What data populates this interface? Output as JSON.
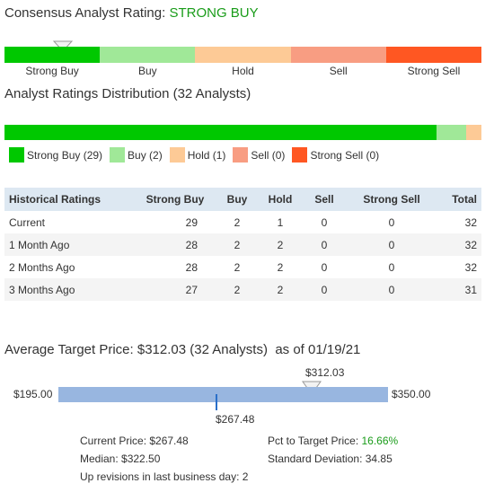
{
  "consensus": {
    "title_prefix": "Consensus Analyst Rating:",
    "rating": "STRONG BUY",
    "labels": [
      "Strong Buy",
      "Buy",
      "Hold",
      "Sell",
      "Strong Sell"
    ],
    "colors": [
      "#00c800",
      "#a0e898",
      "#fdca96",
      "#f89d82",
      "#ff5722"
    ]
  },
  "distribution": {
    "title": "Analyst Ratings Distribution (32 Analysts)",
    "counts": [
      29,
      2,
      1,
      0,
      0
    ],
    "legend": [
      "Strong Buy (29)",
      "Buy (2)",
      "Hold (1)",
      "Sell (0)",
      "Strong Sell (0)"
    ]
  },
  "historical": {
    "headers": [
      "Historical Ratings",
      "Strong Buy",
      "Buy",
      "Hold",
      "Sell",
      "Strong Sell",
      "Total"
    ],
    "rows": [
      [
        "Current",
        "29",
        "2",
        "1",
        "0",
        "0",
        "32"
      ],
      [
        "1 Month Ago",
        "28",
        "2",
        "2",
        "0",
        "0",
        "32"
      ],
      [
        "2 Months Ago",
        "28",
        "2",
        "2",
        "0",
        "0",
        "32"
      ],
      [
        "3 Months Ago",
        "27",
        "2",
        "2",
        "0",
        "0",
        "31"
      ]
    ]
  },
  "target": {
    "title": "Average Target Price: $312.03 (32 Analysts)",
    "as_of": "as of 01/19/21",
    "low_label": "$195.00",
    "high_label": "$350.00",
    "avg_label": "$312.03",
    "current_label": "$267.48",
    "low": 195.0,
    "high": 350.0,
    "avg": 312.03,
    "current": 267.48,
    "current_price": "Current Price: $267.48",
    "median": "Median: $322.50",
    "up_revisions": "Up revisions in last business day: 2",
    "pct_prefix": "Pct to Target Price:",
    "pct_value": "16.66%",
    "std_dev": "Standard Deviation: 34.85"
  }
}
